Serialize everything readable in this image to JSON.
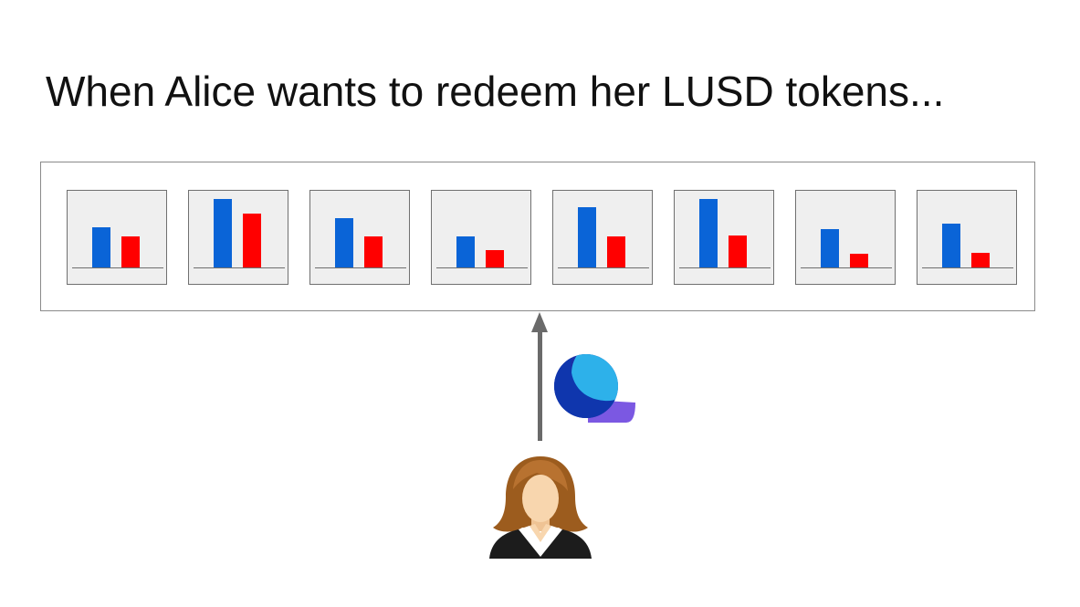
{
  "slide": {
    "title": "When Alice wants to redeem her LUSD tokens..."
  },
  "colors": {
    "collateral_bar": "#0a64d7",
    "debt_bar": "#ff0000",
    "card_background": "#efefef",
    "arrow": "#6a6a6a"
  },
  "troves": [
    {
      "collateral": 0.44,
      "debt": 0.34
    },
    {
      "collateral": 0.75,
      "debt": 0.59
    },
    {
      "collateral": 0.54,
      "debt": 0.34
    },
    {
      "collateral": 0.34,
      "debt": 0.19
    },
    {
      "collateral": 0.66,
      "debt": 0.34
    },
    {
      "collateral": 0.75,
      "debt": 0.35
    },
    {
      "collateral": 0.42,
      "debt": 0.15
    },
    {
      "collateral": 0.48,
      "debt": 0.16
    }
  ],
  "icons": {
    "redeemer": "woman-avatar-icon",
    "protocol": "liquity-logo-icon",
    "direction": "arrow-up-icon"
  }
}
